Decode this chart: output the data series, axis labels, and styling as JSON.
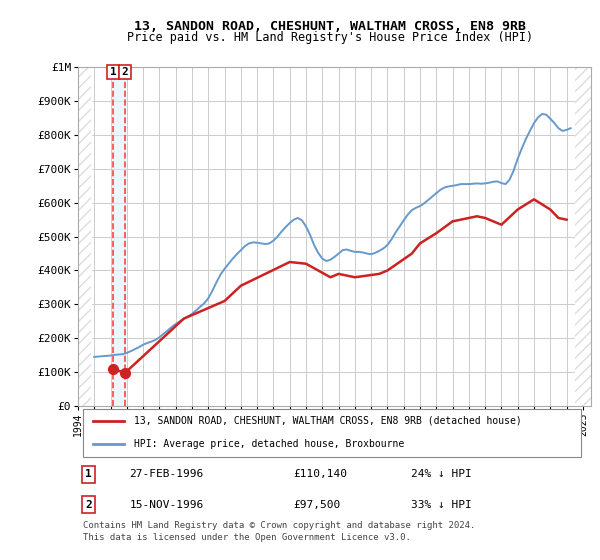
{
  "title": "13, SANDON ROAD, CHESHUNT, WALTHAM CROSS, EN8 9RB",
  "subtitle": "Price paid vs. HM Land Registry's House Price Index (HPI)",
  "ylabel_ticks": [
    "£0",
    "£100K",
    "£200K",
    "£300K",
    "£400K",
    "£500K",
    "£600K",
    "£700K",
    "£800K",
    "£900K",
    "£1M"
  ],
  "ytick_values": [
    0,
    100000,
    200000,
    300000,
    400000,
    500000,
    600000,
    700000,
    800000,
    900000,
    1000000
  ],
  "ylim": [
    0,
    1000000
  ],
  "xlim_start": 1994.0,
  "xlim_end": 2025.5,
  "hpi_color": "#6699cc",
  "price_color": "#cc2222",
  "transaction1_date": 1996.15,
  "transaction1_price": 110140,
  "transaction2_date": 1996.88,
  "transaction2_price": 97500,
  "legend_line1": "13, SANDON ROAD, CHESHUNT, WALTHAM CROSS, EN8 9RB (detached house)",
  "legend_line2": "HPI: Average price, detached house, Broxbourne",
  "table_row1": [
    "1",
    "27-FEB-1996",
    "£110,140",
    "24% ↓ HPI"
  ],
  "table_row2": [
    "2",
    "15-NOV-1996",
    "£97,500",
    "33% ↓ HPI"
  ],
  "footnote": "Contains HM Land Registry data © Crown copyright and database right 2024.\nThis data is licensed under the Open Government Licence v3.0.",
  "background_color": "#ffffff",
  "plot_bg_color": "#ffffff",
  "grid_color": "#cccccc",
  "hatch_color": "#dddddd",
  "marker_box_color": "#cc2222",
  "vertical_line_color": "#ff4444",
  "vertical_bg_color": "#ddeeff",
  "hpi_data_x": [
    1995.0,
    1995.25,
    1995.5,
    1995.75,
    1996.0,
    1996.25,
    1996.5,
    1996.75,
    1997.0,
    1997.25,
    1997.5,
    1997.75,
    1998.0,
    1998.25,
    1998.5,
    1998.75,
    1999.0,
    1999.25,
    1999.5,
    1999.75,
    2000.0,
    2000.25,
    2000.5,
    2000.75,
    2001.0,
    2001.25,
    2001.5,
    2001.75,
    2002.0,
    2002.25,
    2002.5,
    2002.75,
    2003.0,
    2003.25,
    2003.5,
    2003.75,
    2004.0,
    2004.25,
    2004.5,
    2004.75,
    2005.0,
    2005.25,
    2005.5,
    2005.75,
    2006.0,
    2006.25,
    2006.5,
    2006.75,
    2007.0,
    2007.25,
    2007.5,
    2007.75,
    2008.0,
    2008.25,
    2008.5,
    2008.75,
    2009.0,
    2009.25,
    2009.5,
    2009.75,
    2010.0,
    2010.25,
    2010.5,
    2010.75,
    2011.0,
    2011.25,
    2011.5,
    2011.75,
    2012.0,
    2012.25,
    2012.5,
    2012.75,
    2013.0,
    2013.25,
    2013.5,
    2013.75,
    2014.0,
    2014.25,
    2014.5,
    2014.75,
    2015.0,
    2015.25,
    2015.5,
    2015.75,
    2016.0,
    2016.25,
    2016.5,
    2016.75,
    2017.0,
    2017.25,
    2017.5,
    2017.75,
    2018.0,
    2018.25,
    2018.5,
    2018.75,
    2019.0,
    2019.25,
    2019.5,
    2019.75,
    2020.0,
    2020.25,
    2020.5,
    2020.75,
    2021.0,
    2021.25,
    2021.5,
    2021.75,
    2022.0,
    2022.25,
    2022.5,
    2022.75,
    2023.0,
    2023.25,
    2023.5,
    2023.75,
    2024.0,
    2024.25
  ],
  "hpi_data_y": [
    145000,
    146000,
    147000,
    148000,
    149000,
    151000,
    152000,
    153000,
    157000,
    162000,
    168000,
    174000,
    181000,
    186000,
    190000,
    195000,
    203000,
    213000,
    223000,
    233000,
    242000,
    250000,
    258000,
    264000,
    272000,
    282000,
    293000,
    303000,
    318000,
    340000,
    365000,
    388000,
    405000,
    420000,
    435000,
    448000,
    460000,
    472000,
    480000,
    483000,
    482000,
    480000,
    478000,
    480000,
    488000,
    500000,
    515000,
    528000,
    540000,
    550000,
    555000,
    548000,
    530000,
    505000,
    475000,
    452000,
    435000,
    428000,
    432000,
    440000,
    450000,
    460000,
    462000,
    458000,
    455000,
    455000,
    453000,
    450000,
    448000,
    452000,
    458000,
    465000,
    475000,
    492000,
    512000,
    530000,
    548000,
    565000,
    578000,
    585000,
    590000,
    598000,
    608000,
    618000,
    628000,
    638000,
    645000,
    648000,
    650000,
    652000,
    655000,
    655000,
    655000,
    656000,
    657000,
    656000,
    657000,
    659000,
    662000,
    663000,
    658000,
    655000,
    668000,
    695000,
    730000,
    760000,
    788000,
    812000,
    835000,
    852000,
    862000,
    860000,
    848000,
    835000,
    820000,
    812000,
    815000,
    820000
  ],
  "price_data_x": [
    1996.15,
    1996.88,
    2000.5,
    2003.0,
    2004.0,
    2005.5,
    2007.0,
    2008.0,
    2009.5,
    2010.0,
    2011.0,
    2012.5,
    2013.0,
    2014.5,
    2015.0,
    2016.0,
    2017.0,
    2018.5,
    2019.0,
    2020.0,
    2021.0,
    2022.0,
    2023.0,
    2023.5,
    2024.0
  ],
  "price_data_y": [
    110140,
    97500,
    258000,
    310000,
    355000,
    390000,
    425000,
    420000,
    380000,
    390000,
    380000,
    390000,
    400000,
    450000,
    480000,
    510000,
    545000,
    560000,
    555000,
    535000,
    580000,
    610000,
    580000,
    555000,
    550000
  ]
}
